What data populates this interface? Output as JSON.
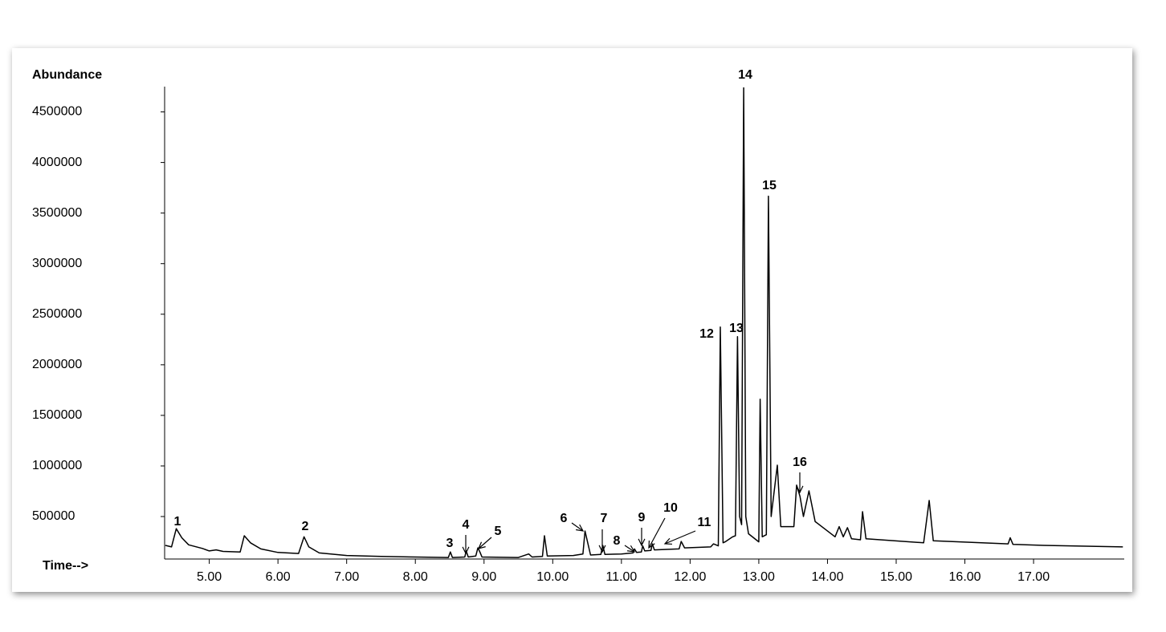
{
  "chart_data": {
    "type": "line",
    "y_label": "Abundance",
    "x_label": "Time-->",
    "color": "#000000",
    "xlim": [
      4.35,
      18.32
    ],
    "ylim": [
      80000,
      4750000
    ],
    "yticks": [
      500000,
      1000000,
      1500000,
      2000000,
      2500000,
      3000000,
      3500000,
      4000000,
      4500000
    ],
    "xticks": [
      {
        "value": 5,
        "label": "5.00"
      },
      {
        "value": 6,
        "label": "6.00"
      },
      {
        "value": 7,
        "label": "7.00"
      },
      {
        "value": 8,
        "label": "8.00"
      },
      {
        "value": 9,
        "label": "9.00"
      },
      {
        "value": 10,
        "label": "10.00"
      },
      {
        "value": 11,
        "label": "11.00"
      },
      {
        "value": 12,
        "label": "12.00"
      },
      {
        "value": 13,
        "label": "13.00"
      },
      {
        "value": 14,
        "label": "14.00"
      },
      {
        "value": 15,
        "label": "15.00"
      },
      {
        "value": 16,
        "label": "16.00"
      },
      {
        "value": 17,
        "label": "17.00"
      }
    ],
    "x": [
      4.36,
      4.45,
      4.52,
      4.6,
      4.7,
      4.9,
      5.0,
      5.1,
      5.2,
      5.45,
      5.51,
      5.6,
      5.75,
      6.0,
      6.3,
      6.38,
      6.45,
      6.6,
      7.0,
      7.5,
      8.0,
      8.48,
      8.51,
      8.54,
      8.72,
      8.74,
      8.77,
      8.88,
      8.91,
      8.94,
      8.97,
      9.5,
      9.65,
      9.7,
      9.85,
      9.88,
      9.92,
      10.3,
      10.44,
      10.47,
      10.55,
      10.7,
      10.73,
      10.76,
      11.0,
      11.17,
      11.19,
      11.22,
      11.29,
      11.31,
      11.34,
      11.43,
      11.45,
      11.48,
      11.84,
      11.87,
      11.92,
      12.3,
      12.34,
      12.41,
      12.44,
      12.48,
      12.51,
      12.62,
      12.66,
      12.69,
      12.72,
      12.75,
      12.78,
      12.81,
      12.85,
      13.0,
      13.02,
      13.05,
      13.11,
      13.14,
      13.18,
      13.27,
      13.32,
      13.51,
      13.55,
      13.6,
      13.65,
      13.73,
      13.82,
      14.11,
      14.17,
      14.23,
      14.29,
      14.35,
      14.48,
      14.51,
      14.56,
      15.4,
      15.48,
      15.54,
      16.63,
      16.66,
      16.7,
      17.15,
      18.3
    ],
    "values": [
      215000,
      200000,
      380000,
      290000,
      220000,
      185000,
      160000,
      170000,
      155000,
      150000,
      310000,
      240000,
      180000,
      145000,
      135000,
      300000,
      200000,
      140000,
      115000,
      105000,
      100000,
      95000,
      150000,
      95000,
      100000,
      160000,
      100000,
      110000,
      190000,
      150000,
      100000,
      95000,
      130000,
      100000,
      105000,
      310000,
      110000,
      115000,
      130000,
      357000,
      120000,
      125000,
      214000,
      125000,
      130000,
      140000,
      180000,
      145000,
      150000,
      210000,
      160000,
      165000,
      230000,
      170000,
      180000,
      254000,
      190000,
      200000,
      230000,
      210000,
      2373000,
      240000,
      250000,
      300000,
      310000,
      2278000,
      500000,
      420000,
      4738000,
      500000,
      330000,
      250000,
      1659000,
      300000,
      320000,
      3667000,
      500000,
      1008000,
      400000,
      400000,
      810000,
      700000,
      500000,
      754000,
      450000,
      300000,
      400000,
      300000,
      390000,
      280000,
      270000,
      548000,
      280000,
      240000,
      659000,
      260000,
      230000,
      290000,
      225000,
      215000,
      200000
    ],
    "annotations": [
      "1",
      "2",
      "3",
      "4",
      "5",
      "6",
      "7",
      "8",
      "9",
      "10",
      "11",
      "12",
      "13",
      "14",
      "15",
      "16"
    ]
  }
}
